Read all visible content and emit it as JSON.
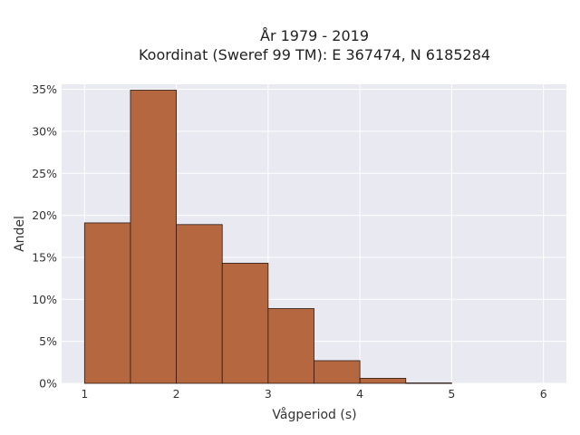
{
  "chart_data": {
    "type": "bar",
    "title": "År 1979 - 2019",
    "subtitle": "Koordinat (Sweref 99 TM): E 367474, N 6185284",
    "xlabel": "Vågperiod (s)",
    "ylabel": "Andel",
    "xlim": [
      0.75,
      6.25
    ],
    "ylim": [
      0,
      35.6
    ],
    "x_ticks": [
      1,
      2,
      3,
      4,
      5,
      6
    ],
    "y_ticks": [
      0,
      5,
      10,
      15,
      20,
      25,
      30,
      35
    ],
    "y_tick_labels": [
      "0%",
      "5%",
      "10%",
      "15%",
      "20%",
      "25%",
      "30%",
      "35%"
    ],
    "bins": [
      {
        "start": 1.0,
        "end": 1.5,
        "value": 19.1
      },
      {
        "start": 1.5,
        "end": 2.0,
        "value": 34.9
      },
      {
        "start": 2.0,
        "end": 2.5,
        "value": 18.9
      },
      {
        "start": 2.5,
        "end": 3.0,
        "value": 14.3
      },
      {
        "start": 3.0,
        "end": 3.5,
        "value": 8.9
      },
      {
        "start": 3.5,
        "end": 4.0,
        "value": 2.7
      },
      {
        "start": 4.0,
        "end": 4.5,
        "value": 0.6
      },
      {
        "start": 4.5,
        "end": 5.0,
        "value": 0.05
      }
    ],
    "grid": true,
    "bar_color": "#b5683f",
    "bar_edge_color": "#2b1a12",
    "plot_background": "#e9e9f2",
    "grid_color": "#ffffff"
  }
}
